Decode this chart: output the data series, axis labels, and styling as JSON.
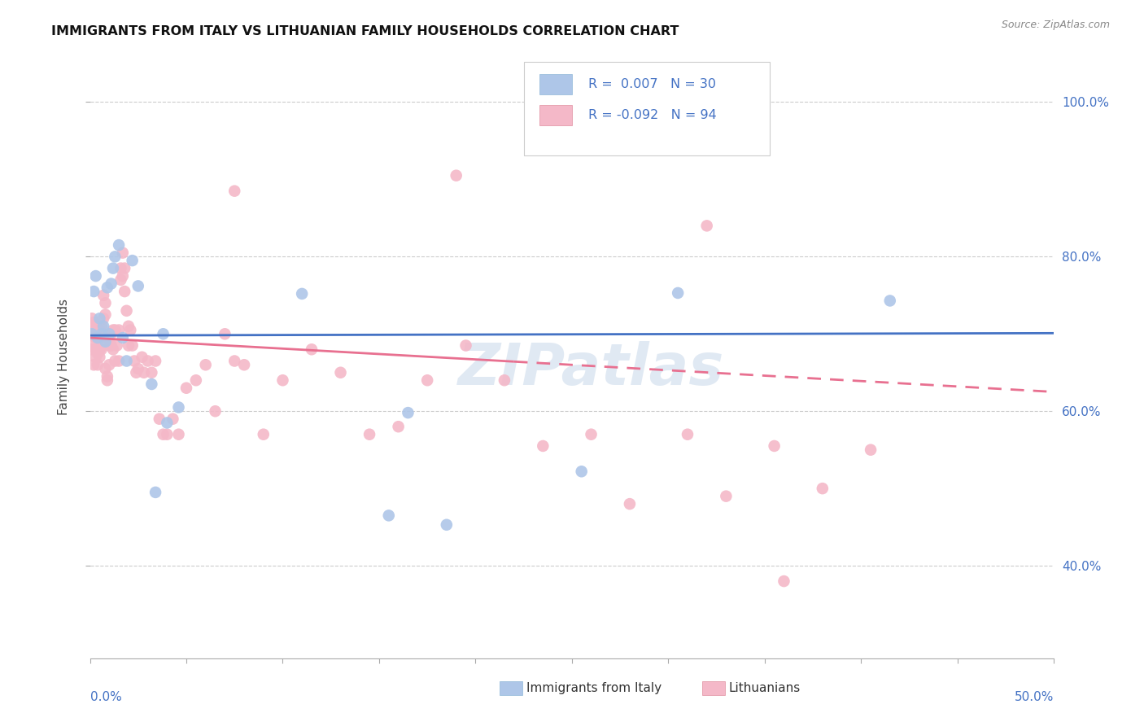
{
  "title": "IMMIGRANTS FROM ITALY VS LITHUANIAN FAMILY HOUSEHOLDS CORRELATION CHART",
  "source": "Source: ZipAtlas.com",
  "ylabel": "Family Households",
  "legend_label1": "Immigrants from Italy",
  "legend_label2": "Lithuanians",
  "R1": 0.007,
  "N1": 30,
  "R2": -0.092,
  "N2": 94,
  "color_blue": "#aec6e8",
  "color_blue_line": "#4472c4",
  "color_pink": "#f4b8c8",
  "color_pink_line": "#e87090",
  "color_text_blue": "#4472c4",
  "xlim": [
    0.0,
    0.5
  ],
  "ylim": [
    0.28,
    1.06
  ],
  "yticks": [
    0.4,
    0.6,
    0.8,
    1.0
  ],
  "yticklabels": [
    "40.0%",
    "60.0%",
    "80.0%",
    "100.0%"
  ],
  "blue_line_y0": 0.698,
  "blue_line_y1": 0.701,
  "pink_line_y0": 0.695,
  "pink_line_y1": 0.625,
  "blue_points_x": [
    0.001,
    0.002,
    0.003,
    0.004,
    0.005,
    0.006,
    0.007,
    0.008,
    0.009,
    0.01,
    0.011,
    0.012,
    0.013,
    0.015,
    0.017,
    0.019,
    0.022,
    0.025,
    0.032,
    0.034,
    0.038,
    0.04,
    0.046,
    0.11,
    0.155,
    0.165,
    0.185,
    0.255,
    0.305,
    0.415
  ],
  "blue_points_y": [
    0.7,
    0.755,
    0.775,
    0.695,
    0.72,
    0.7,
    0.71,
    0.69,
    0.76,
    0.7,
    0.765,
    0.785,
    0.8,
    0.815,
    0.695,
    0.665,
    0.795,
    0.762,
    0.635,
    0.495,
    0.7,
    0.585,
    0.605,
    0.752,
    0.465,
    0.598,
    0.453,
    0.522,
    0.753,
    0.743
  ],
  "pink_points_x": [
    0.001,
    0.001,
    0.001,
    0.002,
    0.002,
    0.002,
    0.002,
    0.003,
    0.003,
    0.003,
    0.003,
    0.004,
    0.004,
    0.004,
    0.004,
    0.005,
    0.005,
    0.005,
    0.005,
    0.006,
    0.006,
    0.006,
    0.007,
    0.007,
    0.007,
    0.008,
    0.008,
    0.008,
    0.009,
    0.009,
    0.01,
    0.01,
    0.01,
    0.011,
    0.011,
    0.012,
    0.012,
    0.013,
    0.013,
    0.014,
    0.015,
    0.015,
    0.016,
    0.016,
    0.017,
    0.017,
    0.018,
    0.018,
    0.019,
    0.02,
    0.02,
    0.021,
    0.022,
    0.023,
    0.024,
    0.025,
    0.027,
    0.028,
    0.03,
    0.032,
    0.034,
    0.036,
    0.038,
    0.04,
    0.043,
    0.046,
    0.05,
    0.055,
    0.06,
    0.065,
    0.07,
    0.075,
    0.08,
    0.09,
    0.1,
    0.115,
    0.13,
    0.145,
    0.16,
    0.175,
    0.195,
    0.215,
    0.235,
    0.26,
    0.28,
    0.31,
    0.33,
    0.355,
    0.38,
    0.405,
    0.32,
    0.36,
    0.19,
    0.075
  ],
  "pink_points_y": [
    0.7,
    0.68,
    0.72,
    0.705,
    0.69,
    0.715,
    0.66,
    0.67,
    0.695,
    0.71,
    0.68,
    0.675,
    0.7,
    0.695,
    0.66,
    0.695,
    0.68,
    0.705,
    0.67,
    0.71,
    0.695,
    0.68,
    0.75,
    0.7,
    0.72,
    0.725,
    0.74,
    0.655,
    0.645,
    0.64,
    0.66,
    0.685,
    0.695,
    0.7,
    0.685,
    0.705,
    0.68,
    0.665,
    0.705,
    0.685,
    0.665,
    0.705,
    0.785,
    0.77,
    0.775,
    0.805,
    0.785,
    0.755,
    0.73,
    0.71,
    0.685,
    0.705,
    0.685,
    0.665,
    0.65,
    0.655,
    0.67,
    0.65,
    0.665,
    0.65,
    0.665,
    0.59,
    0.57,
    0.57,
    0.59,
    0.57,
    0.63,
    0.64,
    0.66,
    0.6,
    0.7,
    0.665,
    0.66,
    0.57,
    0.64,
    0.68,
    0.65,
    0.57,
    0.58,
    0.64,
    0.685,
    0.64,
    0.555,
    0.57,
    0.48,
    0.57,
    0.49,
    0.555,
    0.5,
    0.55,
    0.84,
    0.38,
    0.905,
    0.885
  ]
}
